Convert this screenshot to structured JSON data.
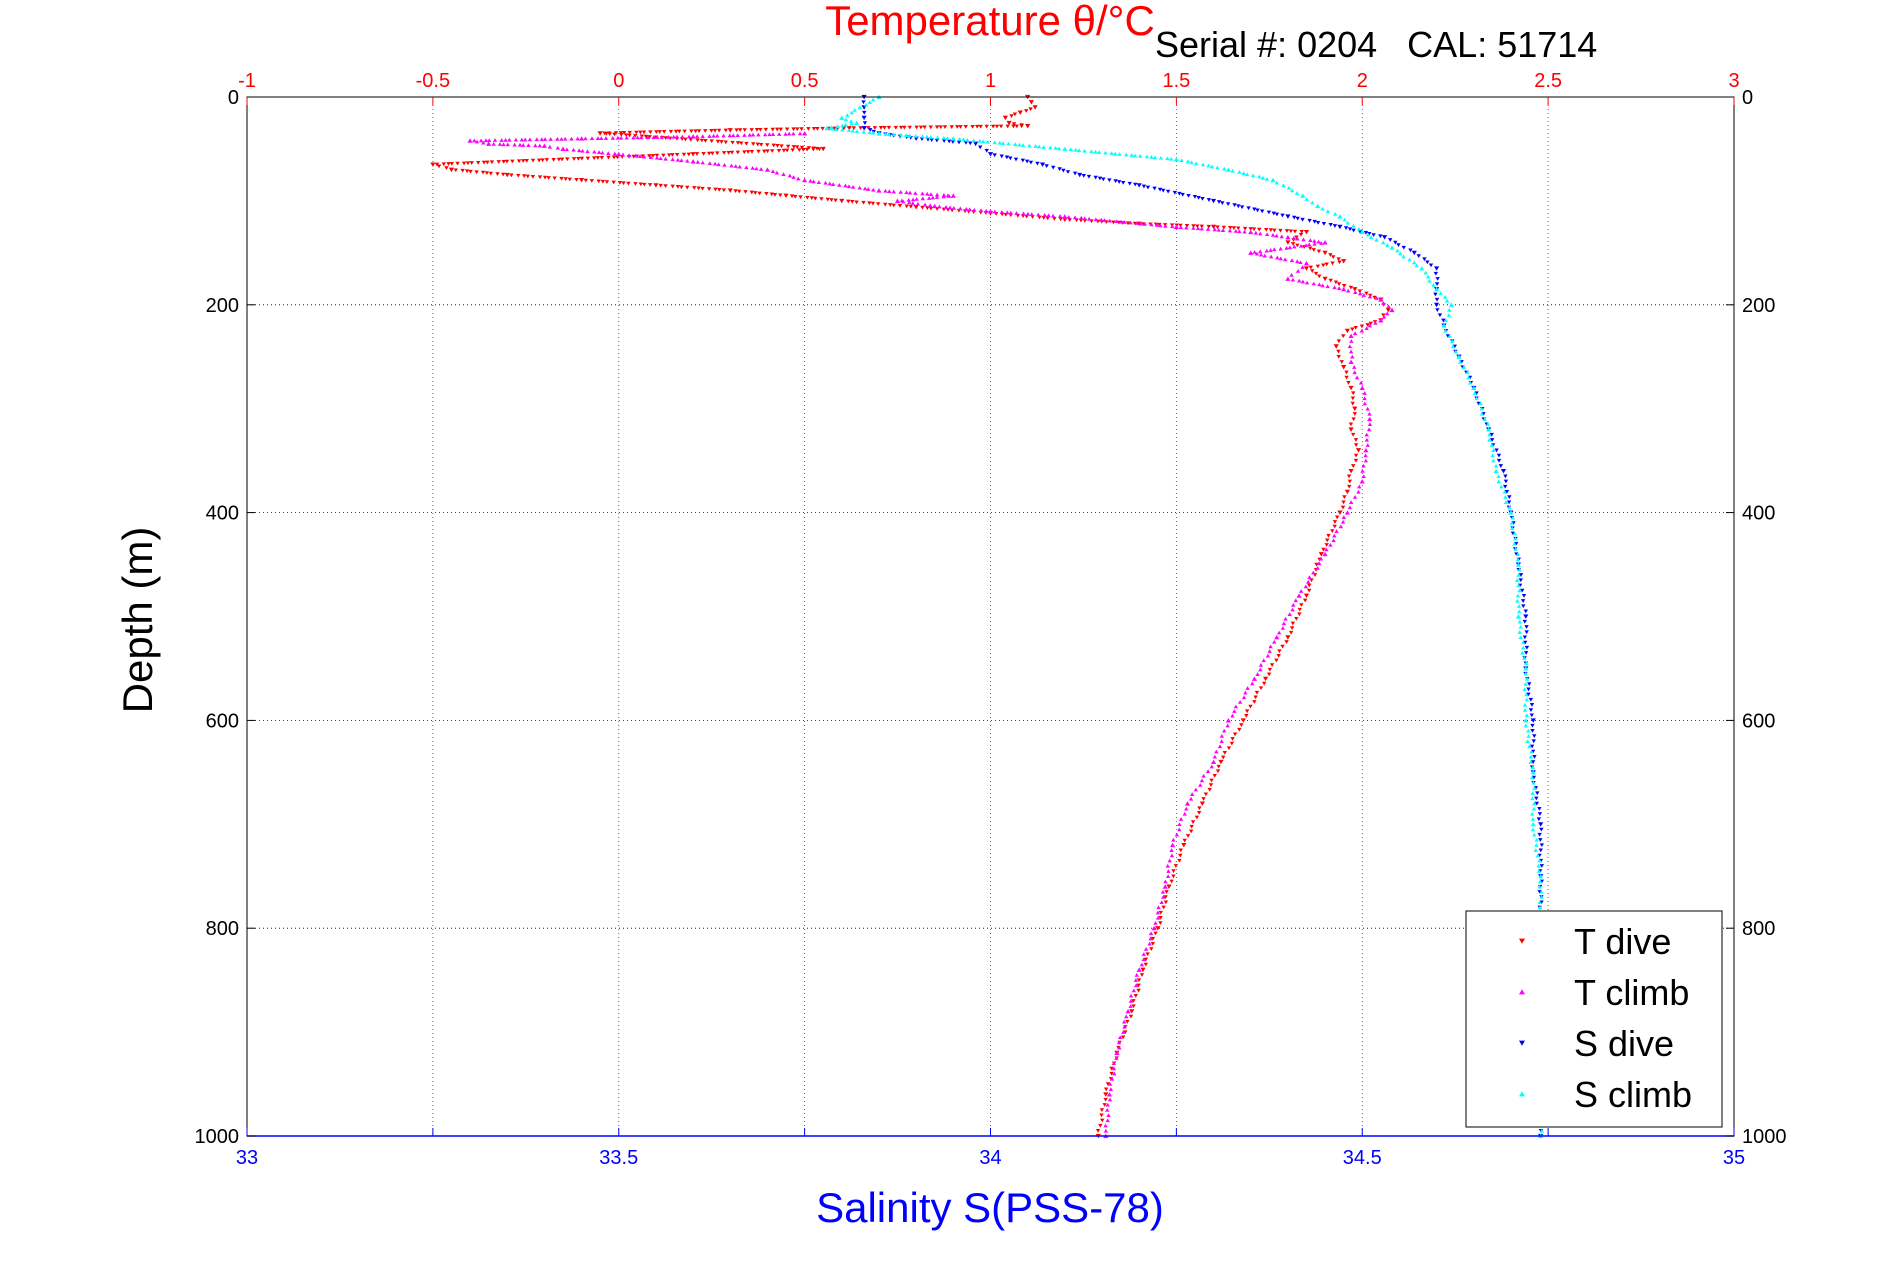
{
  "chart_data": {
    "type": "scatter",
    "title": "Temperature θ/°C",
    "subtitle": "Serial #: 0204   CAL: 51714",
    "xlabel": "Salinity S(PSS-78)",
    "ylabel": "Depth (m)",
    "x_bottom": {
      "label": "Salinity S(PSS-78)",
      "range": [
        33,
        35
      ],
      "ticks": [
        33,
        33.5,
        34,
        34.5,
        35
      ],
      "tick_labels": [
        "33",
        "33.5",
        "34",
        "34.5",
        "35"
      ],
      "color": "#0000ff"
    },
    "x_top": {
      "label": "Temperature θ/°C",
      "range": [
        -1,
        3
      ],
      "ticks": [
        -1,
        -0.5,
        0,
        0.5,
        1,
        1.5,
        2,
        2.5,
        3
      ],
      "tick_labels": [
        "-1",
        "-0.5",
        "0",
        "0.5",
        "1",
        "1.5",
        "2",
        "2.5",
        "3"
      ],
      "color": "#ff0000"
    },
    "y": {
      "label": "Depth (m)",
      "range": [
        0,
        1000
      ],
      "reversed": true,
      "ticks": [
        0,
        200,
        400,
        600,
        800,
        1000
      ],
      "tick_labels": [
        "0",
        "200",
        "400",
        "600",
        "800",
        "1000"
      ]
    },
    "grid": true,
    "legend_position": "bottom-right",
    "series": [
      {
        "name": "T dive",
        "axis": "top",
        "color": "#ff0000",
        "marker": "triangle-down",
        "points": [
          [
            1.1,
            0
          ],
          [
            1.11,
            5
          ],
          [
            1.12,
            10
          ],
          [
            1.08,
            15
          ],
          [
            1.04,
            20
          ],
          [
            1.05,
            25
          ],
          [
            1.1,
            28
          ],
          [
            0.62,
            30
          ],
          [
            0.3,
            32
          ],
          [
            -0.05,
            35
          ],
          [
            0.55,
            50
          ],
          [
            0.2,
            55
          ],
          [
            -0.5,
            65
          ],
          [
            -0.45,
            70
          ],
          [
            -0.3,
            75
          ],
          [
            -0.1,
            80
          ],
          [
            0.1,
            85
          ],
          [
            0.3,
            90
          ],
          [
            0.45,
            95
          ],
          [
            0.6,
            100
          ],
          [
            0.8,
            106
          ],
          [
            1.0,
            112
          ],
          [
            1.2,
            118
          ],
          [
            1.4,
            122
          ],
          [
            1.6,
            125
          ],
          [
            1.85,
            130
          ],
          [
            1.8,
            140
          ],
          [
            1.9,
            150
          ],
          [
            1.95,
            158
          ],
          [
            1.85,
            165
          ],
          [
            1.9,
            175
          ],
          [
            1.98,
            185
          ],
          [
            2.05,
            195
          ],
          [
            2.07,
            205
          ],
          [
            2.05,
            215
          ],
          [
            1.96,
            225
          ],
          [
            1.93,
            240
          ],
          [
            1.95,
            260
          ],
          [
            1.97,
            280
          ],
          [
            1.98,
            300
          ],
          [
            1.97,
            320
          ],
          [
            1.99,
            340
          ],
          [
            1.97,
            360
          ],
          [
            1.96,
            380
          ],
          [
            1.94,
            400
          ],
          [
            1.89,
            440
          ],
          [
            1.85,
            480
          ],
          [
            1.8,
            520
          ],
          [
            1.74,
            560
          ],
          [
            1.68,
            600
          ],
          [
            1.62,
            640
          ],
          [
            1.57,
            680
          ],
          [
            1.52,
            720
          ],
          [
            1.48,
            760
          ],
          [
            1.45,
            800
          ],
          [
            1.41,
            840
          ],
          [
            1.38,
            880
          ],
          [
            1.34,
            920
          ],
          [
            1.31,
            960
          ],
          [
            1.29,
            1000
          ]
        ]
      },
      {
        "name": "T climb",
        "axis": "top",
        "color": "#ff00ff",
        "marker": "triangle-up",
        "points": [
          [
            0.5,
            35
          ],
          [
            0.2,
            38
          ],
          [
            -0.1,
            40
          ],
          [
            -0.4,
            42
          ],
          [
            -0.35,
            45
          ],
          [
            -0.2,
            47
          ],
          [
            -0.15,
            50
          ],
          [
            0.0,
            55
          ],
          [
            0.2,
            62
          ],
          [
            0.4,
            70
          ],
          [
            0.5,
            80
          ],
          [
            0.7,
            90
          ],
          [
            0.9,
            95
          ],
          [
            0.75,
            100
          ],
          [
            0.85,
            105
          ],
          [
            1.0,
            110
          ],
          [
            1.2,
            115
          ],
          [
            1.5,
            125
          ],
          [
            1.7,
            130
          ],
          [
            1.8,
            135
          ],
          [
            1.9,
            140
          ],
          [
            1.7,
            150
          ],
          [
            1.85,
            160
          ],
          [
            1.8,
            175
          ],
          [
            1.95,
            185
          ],
          [
            2.05,
            195
          ],
          [
            2.08,
            205
          ],
          [
            2.05,
            215
          ],
          [
            1.97,
            230
          ],
          [
            1.97,
            255
          ],
          [
            2.0,
            280
          ],
          [
            2.02,
            310
          ],
          [
            2.01,
            340
          ],
          [
            2.0,
            370
          ],
          [
            1.96,
            400
          ],
          [
            1.9,
            440
          ],
          [
            1.83,
            480
          ],
          [
            1.77,
            520
          ],
          [
            1.71,
            560
          ],
          [
            1.64,
            600
          ],
          [
            1.6,
            640
          ],
          [
            1.53,
            680
          ],
          [
            1.49,
            720
          ],
          [
            1.47,
            760
          ],
          [
            1.44,
            800
          ],
          [
            1.4,
            840
          ],
          [
            1.37,
            880
          ],
          [
            1.34,
            920
          ],
          [
            1.32,
            960
          ],
          [
            1.31,
            1000
          ]
        ]
      },
      {
        "name": "S dive",
        "axis": "bottom",
        "color": "#0000ff",
        "marker": "triangle-down",
        "points": [
          [
            33.83,
            0
          ],
          [
            33.83,
            10
          ],
          [
            33.83,
            20
          ],
          [
            33.83,
            30
          ],
          [
            33.85,
            35
          ],
          [
            33.9,
            40
          ],
          [
            33.98,
            45
          ],
          [
            34.0,
            55
          ],
          [
            34.07,
            65
          ],
          [
            34.12,
            75
          ],
          [
            34.2,
            85
          ],
          [
            34.3,
            100
          ],
          [
            34.4,
            115
          ],
          [
            34.47,
            125
          ],
          [
            34.53,
            135
          ],
          [
            34.57,
            150
          ],
          [
            34.6,
            165
          ],
          [
            34.6,
            185
          ],
          [
            34.6,
            200
          ],
          [
            34.61,
            220
          ],
          [
            34.63,
            250
          ],
          [
            34.65,
            280
          ],
          [
            34.67,
            320
          ],
          [
            34.69,
            360
          ],
          [
            34.7,
            400
          ],
          [
            34.71,
            450
          ],
          [
            34.72,
            500
          ],
          [
            34.72,
            550
          ],
          [
            34.73,
            600
          ],
          [
            34.73,
            650
          ],
          [
            34.74,
            700
          ],
          [
            34.74,
            750
          ],
          [
            34.74,
            800
          ],
          [
            34.74,
            850
          ],
          [
            34.74,
            900
          ],
          [
            34.74,
            950
          ],
          [
            34.74,
            1000
          ]
        ]
      },
      {
        "name": "S climb",
        "axis": "bottom",
        "color": "#00ffff",
        "marker": "triangle-up",
        "points": [
          [
            33.85,
            0
          ],
          [
            33.8,
            20
          ],
          [
            33.82,
            25
          ],
          [
            33.78,
            30
          ],
          [
            33.85,
            35
          ],
          [
            33.95,
            40
          ],
          [
            34.1,
            50
          ],
          [
            34.25,
            60
          ],
          [
            34.32,
            70
          ],
          [
            34.38,
            80
          ],
          [
            34.42,
            95
          ],
          [
            34.44,
            105
          ],
          [
            34.47,
            115
          ],
          [
            34.5,
            130
          ],
          [
            34.54,
            145
          ],
          [
            34.58,
            165
          ],
          [
            34.6,
            185
          ],
          [
            34.62,
            200
          ],
          [
            34.61,
            220
          ],
          [
            34.63,
            250
          ],
          [
            34.65,
            280
          ],
          [
            34.67,
            320
          ],
          [
            34.68,
            360
          ],
          [
            34.7,
            400
          ],
          [
            34.71,
            450
          ],
          [
            34.71,
            500
          ],
          [
            34.72,
            550
          ],
          [
            34.72,
            600
          ],
          [
            34.73,
            650
          ],
          [
            34.73,
            700
          ],
          [
            34.74,
            750
          ],
          [
            34.74,
            800
          ],
          [
            34.74,
            850
          ],
          [
            34.74,
            900
          ],
          [
            34.74,
            950
          ],
          [
            34.74,
            1000
          ]
        ]
      }
    ],
    "legend": [
      "T dive",
      "T climb",
      "S dive",
      "S climb"
    ]
  }
}
